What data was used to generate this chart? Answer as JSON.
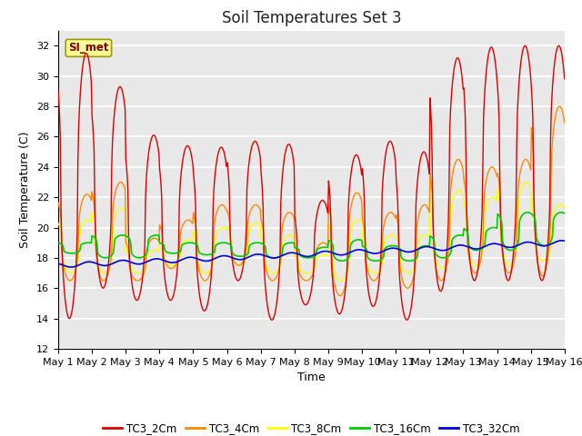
{
  "title": "Soil Temperatures Set 3",
  "xlabel": "Time",
  "ylabel": "Soil Temperature (C)",
  "ylim": [
    12,
    33
  ],
  "yticks": [
    12,
    14,
    16,
    18,
    20,
    22,
    24,
    26,
    28,
    30,
    32
  ],
  "xlim": [
    0,
    15
  ],
  "xtick_labels": [
    "May 1",
    "May 2",
    "May 3",
    "May 4",
    "May 5",
    "May 6",
    "May 7",
    "May 8",
    "May 9",
    "May 10",
    "May 11",
    "May 12",
    "May 13",
    "May 14",
    "May 15",
    "May 16"
  ],
  "series_colors": {
    "TC3_2Cm": "#dd0000",
    "TC3_4Cm": "#ff8800",
    "TC3_8Cm": "#ffff00",
    "TC3_16Cm": "#00cc00",
    "TC3_32Cm": "#0000dd"
  },
  "plot_bg_color": "#e8e8e8",
  "fig_bg_color": "#ffffff",
  "annotation_text": "SI_met",
  "annotation_box_color": "#ffff99",
  "annotation_border_color": "#999900",
  "grid_color": "#ffffff",
  "title_fontsize": 12,
  "axis_label_fontsize": 9,
  "tick_fontsize": 8
}
